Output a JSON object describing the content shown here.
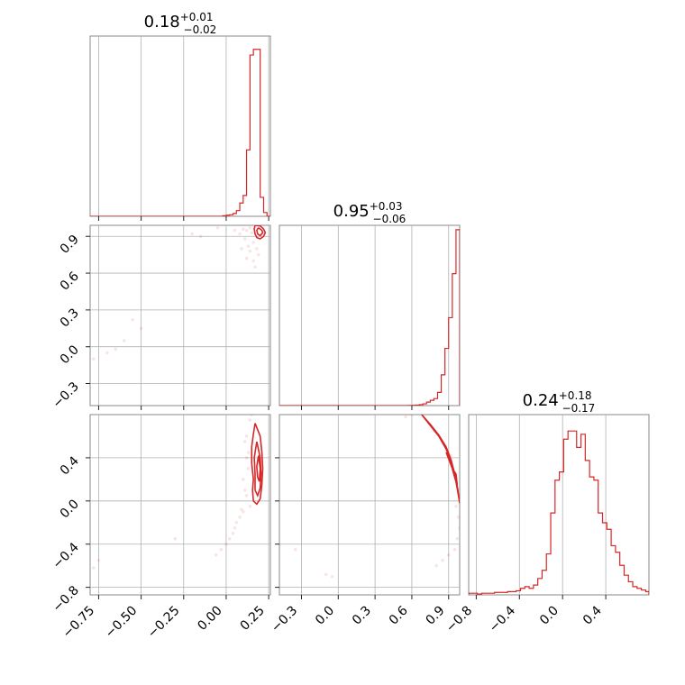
{
  "chart_data": {
    "type": "corner",
    "color": "#d62728",
    "parameters": [
      {
        "title": {
          "median": "0.18",
          "plus": "+0.01",
          "minus": "−0.02"
        },
        "range": [
          -0.8,
          0.26
        ],
        "ticks": [
          -0.75,
          -0.5,
          -0.25,
          0.0,
          0.25
        ],
        "tick_labels": [
          "−0.75",
          "−0.50",
          "−0.25",
          "0.00",
          "0.25"
        ],
        "hist": {
          "edges": [
            -0.8,
            -0.78,
            -0.76,
            -0.74,
            -0.72,
            -0.7,
            -0.68,
            -0.66,
            -0.64,
            -0.62,
            -0.6,
            -0.58,
            -0.56,
            -0.54,
            -0.52,
            -0.5,
            -0.48,
            -0.46,
            -0.44,
            -0.42,
            -0.4,
            -0.38,
            -0.36,
            -0.34,
            -0.32,
            -0.3,
            -0.28,
            -0.26,
            -0.24,
            -0.22,
            -0.2,
            -0.18,
            -0.16,
            -0.14,
            -0.12,
            -0.1,
            -0.08,
            -0.06,
            -0.04,
            -0.02,
            0.0,
            0.02,
            0.04,
            0.06,
            0.08,
            0.1,
            0.12,
            0.14,
            0.16,
            0.18,
            0.2,
            0.22,
            0.24,
            0.26
          ],
          "counts": [
            0,
            0,
            0,
            0,
            0,
            0,
            0,
            0,
            0,
            0,
            0,
            0,
            0,
            0,
            0,
            0,
            0,
            0,
            0,
            0,
            0,
            0,
            0,
            0,
            0,
            0,
            0,
            0,
            0,
            0,
            0,
            0,
            0,
            0,
            0,
            0,
            0,
            0,
            0,
            0.3,
            0.6,
            0.8,
            1.5,
            3,
            7,
            11,
            35,
            85,
            88,
            88,
            10,
            2,
            0
          ],
          "ymax": 95
        }
      },
      {
        "title": {
          "median": "0.95",
          "plus": "+0.03",
          "minus": "−0.06"
        },
        "range": [
          -0.48,
          0.99
        ],
        "ticks": [
          -0.3,
          0.0,
          0.3,
          0.6,
          0.9
        ],
        "tick_labels": [
          "−0.3",
          "0.0",
          "0.3",
          "0.6",
          "0.9"
        ],
        "hist": {
          "edges": [
            -0.48,
            -0.45,
            -0.42,
            -0.39,
            -0.36,
            -0.33,
            -0.3,
            -0.27,
            -0.24,
            -0.21,
            -0.18,
            -0.15,
            -0.12,
            -0.09,
            -0.06,
            -0.03,
            0.0,
            0.03,
            0.06,
            0.09,
            0.12,
            0.15,
            0.18,
            0.21,
            0.24,
            0.27,
            0.3,
            0.33,
            0.36,
            0.39,
            0.42,
            0.45,
            0.48,
            0.51,
            0.54,
            0.57,
            0.6,
            0.63,
            0.66,
            0.69,
            0.72,
            0.75,
            0.78,
            0.81,
            0.84,
            0.87,
            0.9,
            0.93,
            0.96,
            0.99
          ],
          "counts": [
            0,
            0,
            0,
            0,
            0,
            0,
            0,
            0,
            0,
            0,
            0,
            0,
            0,
            0,
            0,
            0,
            0,
            0,
            0,
            0,
            0,
            0,
            0,
            0,
            0,
            0,
            0,
            0,
            0,
            0,
            0,
            0,
            0,
            0,
            0,
            0.2,
            0.3,
            0.5,
            1,
            2,
            4,
            6,
            8,
            15,
            35,
            65,
            100,
            150,
            200
          ],
          "ymax": 205
        }
      },
      {
        "title": {
          "median": "0.24",
          "plus": "+0.18",
          "minus": "−0.17"
        },
        "range": [
          -0.87,
          0.8
        ],
        "ticks": [
          -0.8,
          -0.4,
          0.0,
          0.4
        ],
        "tick_labels": [
          "−0.8",
          "−0.4",
          "0.0",
          "0.4"
        ],
        "hist": {
          "edges": [
            -0.87,
            -0.83,
            -0.79,
            -0.75,
            -0.71,
            -0.67,
            -0.63,
            -0.59,
            -0.55,
            -0.51,
            -0.47,
            -0.43,
            -0.39,
            -0.35,
            -0.31,
            -0.27,
            -0.23,
            -0.19,
            -0.15,
            -0.11,
            -0.07,
            -0.03,
            0.01,
            0.05,
            0.09,
            0.13,
            0.17,
            0.21,
            0.25,
            0.29,
            0.33,
            0.37,
            0.41,
            0.45,
            0.49,
            0.53,
            0.57,
            0.61,
            0.65,
            0.69,
            0.73,
            0.77,
            0.8
          ],
          "counts": [
            1,
            1,
            0.5,
            1,
            1,
            1,
            1.5,
            1.5,
            1.5,
            2,
            2,
            2.5,
            4,
            5,
            4,
            6,
            10,
            15,
            25,
            50,
            70,
            75,
            95,
            100,
            100,
            90,
            98,
            82,
            72,
            70,
            50,
            44,
            40,
            30,
            26,
            18,
            12,
            8,
            5,
            4,
            3,
            2
          ],
          "ymax": 110
        }
      }
    ],
    "panels": [
      {
        "x_param": 0,
        "y_param": 1,
        "contours": [
          [
            [
              0.17,
              0.99
            ],
            [
              0.2,
              0.985
            ],
            [
              0.22,
              0.96
            ],
            [
              0.23,
              0.93
            ],
            [
              0.22,
              0.9
            ],
            [
              0.2,
              0.88
            ],
            [
              0.18,
              0.89
            ],
            [
              0.17,
              0.92
            ],
            [
              0.165,
              0.96
            ],
            [
              0.17,
              0.99
            ]
          ],
          [
            [
              0.19,
              0.97
            ],
            [
              0.21,
              0.95
            ],
            [
              0.215,
              0.93
            ],
            [
              0.2,
              0.905
            ],
            [
              0.185,
              0.92
            ],
            [
              0.18,
              0.95
            ],
            [
              0.19,
              0.97
            ]
          ]
        ],
        "samples": [
          [
            0.14,
            0.97
          ],
          [
            0.12,
            0.95
          ],
          [
            0.15,
            0.93
          ],
          [
            0.1,
            0.96
          ],
          [
            0.16,
            0.85
          ],
          [
            0.13,
            0.82
          ],
          [
            0.18,
            0.8
          ],
          [
            0.14,
            0.78
          ],
          [
            0.11,
            0.88
          ],
          [
            0.08,
            0.92
          ],
          [
            0.19,
            0.75
          ],
          [
            0.16,
            0.7
          ],
          [
            0.05,
            0.95
          ],
          [
            -0.05,
            0.97
          ],
          [
            -0.15,
            0.9
          ],
          [
            -0.2,
            0.92
          ],
          [
            0.12,
            0.72
          ],
          [
            0.09,
            0.8
          ],
          [
            0.17,
            0.65
          ],
          [
            -0.55,
            0.22
          ],
          [
            -0.5,
            0.15
          ],
          [
            -0.6,
            0.05
          ],
          [
            -0.7,
            -0.05
          ],
          [
            -0.78,
            -0.1
          ],
          [
            -0.65,
            -0.02
          ]
        ]
      },
      {
        "x_param": 0,
        "y_param": 2,
        "contours": [
          [
            [
              0.17,
              0.72
            ],
            [
              0.2,
              0.6
            ],
            [
              0.21,
              0.45
            ],
            [
              0.215,
              0.3
            ],
            [
              0.21,
              0.15
            ],
            [
              0.2,
              0.02
            ],
            [
              0.18,
              -0.03
            ],
            [
              0.16,
              0.0
            ],
            [
              0.155,
              0.1
            ],
            [
              0.16,
              0.2
            ],
            [
              0.15,
              0.35
            ],
            [
              0.15,
              0.5
            ],
            [
              0.16,
              0.62
            ],
            [
              0.17,
              0.72
            ]
          ],
          [
            [
              0.18,
              0.55
            ],
            [
              0.2,
              0.4
            ],
            [
              0.205,
              0.25
            ],
            [
              0.2,
              0.12
            ],
            [
              0.185,
              0.05
            ],
            [
              0.17,
              0.1
            ],
            [
              0.17,
              0.25
            ],
            [
              0.165,
              0.4
            ],
            [
              0.18,
              0.55
            ]
          ],
          [
            [
              0.19,
              0.42
            ],
            [
              0.2,
              0.3
            ],
            [
              0.195,
              0.18
            ],
            [
              0.185,
              0.22
            ],
            [
              0.18,
              0.32
            ],
            [
              0.19,
              0.42
            ]
          ]
        ],
        "samples": [
          [
            0.14,
            0.75
          ],
          [
            0.12,
            0.6
          ],
          [
            0.13,
            0.45
          ],
          [
            0.1,
            0.2
          ],
          [
            0.12,
            0.05
          ],
          [
            0.14,
            -0.05
          ],
          [
            0.1,
            -0.1
          ],
          [
            0.08,
            -0.15
          ],
          [
            0.06,
            -0.2
          ],
          [
            0.04,
            -0.3
          ],
          [
            0.02,
            -0.35
          ],
          [
            0.0,
            -0.4
          ],
          [
            -0.03,
            -0.45
          ],
          [
            -0.06,
            -0.5
          ],
          [
            0.13,
            0.3
          ],
          [
            0.11,
            0.1
          ],
          [
            0.09,
            -0.08
          ],
          [
            0.05,
            -0.25
          ],
          [
            -0.3,
            -0.35
          ],
          [
            -0.78,
            -0.62
          ],
          [
            -0.75,
            -0.55
          ],
          [
            0.11,
            0.55
          ],
          [
            0.15,
            0.8
          ],
          [
            0.2,
            0.82
          ],
          [
            0.12,
            0.4
          ]
        ]
      },
      {
        "x_param": 1,
        "y_param": 2,
        "contours": [
          [
            [
              0.68,
              0.8
            ],
            [
              0.75,
              0.7
            ],
            [
              0.82,
              0.6
            ],
            [
              0.88,
              0.48
            ],
            [
              0.93,
              0.33
            ],
            [
              0.96,
              0.18
            ],
            [
              0.98,
              0.05
            ],
            [
              0.99,
              -0.02
            ],
            [
              0.975,
              0.1
            ],
            [
              0.95,
              0.25
            ],
            [
              0.92,
              0.38
            ],
            [
              0.88,
              0.5
            ],
            [
              0.82,
              0.61
            ],
            [
              0.75,
              0.71
            ],
            [
              0.68,
              0.8
            ]
          ],
          [
            [
              0.88,
              0.45
            ],
            [
              0.93,
              0.32
            ],
            [
              0.96,
              0.2
            ],
            [
              0.975,
              0.1
            ],
            [
              0.96,
              0.18
            ],
            [
              0.93,
              0.3
            ],
            [
              0.88,
              0.45
            ]
          ],
          [
            [
              0.93,
              0.3
            ],
            [
              0.96,
              0.25
            ],
            [
              0.97,
              0.15
            ],
            [
              0.955,
              0.2
            ],
            [
              0.93,
              0.3
            ]
          ]
        ],
        "samples": [
          [
            0.7,
            0.82
          ],
          [
            0.65,
            0.85
          ],
          [
            0.98,
            -0.15
          ],
          [
            0.99,
            -0.25
          ],
          [
            0.97,
            -0.35
          ],
          [
            0.95,
            -0.45
          ],
          [
            0.9,
            -0.5
          ],
          [
            0.85,
            -0.55
          ],
          [
            0.8,
            -0.6
          ],
          [
            0.96,
            -0.05
          ],
          [
            0.78,
            0.65
          ],
          [
            0.6,
            0.8
          ],
          [
            0.55,
            0.78
          ],
          [
            -0.35,
            -0.45
          ],
          [
            -0.1,
            -0.68
          ],
          [
            -0.05,
            -0.7
          ],
          [
            0.99,
            0.1
          ],
          [
            0.92,
            0.42
          ]
        ]
      }
    ]
  }
}
